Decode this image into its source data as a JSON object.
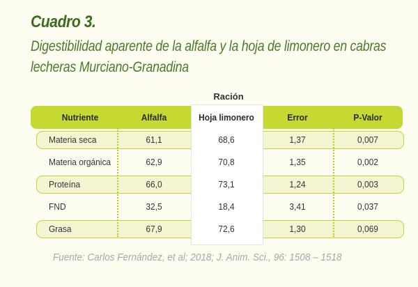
{
  "title": "Cuadro 3.",
  "subtitle_lines": [
    "Digestibilidad aparente de la alfalfa y la hoja de limonero en cabras",
    "lecheras Murciano-Granadina"
  ],
  "group_header": "Ración",
  "columns": [
    "Nutriente",
    "Alfalfa",
    "Hoja limonero",
    "Error",
    "P-Valor"
  ],
  "rows": [
    {
      "nutriente": "Materia seca",
      "alfalfa": "61,1",
      "hoja_limonero": "68,6",
      "error": "1,37",
      "p_valor": "0,007"
    },
    {
      "nutriente": "Materia orgánica",
      "alfalfa": "62,9",
      "hoja_limonero": "70,8",
      "error": "1,35",
      "p_valor": "0,002"
    },
    {
      "nutriente": "Proteína",
      "alfalfa": "66,0",
      "hoja_limonero": "73,1",
      "error": "1,24",
      "p_valor": "0,003"
    },
    {
      "nutriente": "FND",
      "alfalfa": "32,5",
      "hoja_limonero": "18,4",
      "error": "3,41",
      "p_valor": "0,037"
    },
    {
      "nutriente": "Grasa",
      "alfalfa": "67,9",
      "hoja_limonero": "72,6",
      "error": "1,30",
      "p_valor": "0,069"
    }
  ],
  "source": "Fuente: Carlos Fernández, et al; 2018; J. Anim. Sci., 96: 1508 – 1518",
  "colors": {
    "header_band": "#c6d832",
    "row_band_fill": "#f3f5d3",
    "title_green": "#3a6b1e",
    "background": "#fefdf1"
  }
}
